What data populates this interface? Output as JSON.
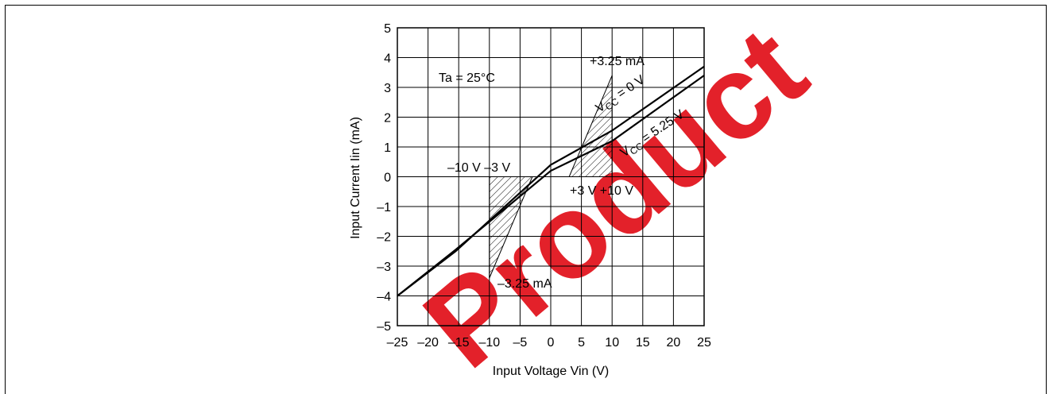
{
  "chart_data": {
    "type": "line",
    "xlabel": "Input Voltage  Vin  (V)",
    "ylabel": "Input Current  Iin  (mA)",
    "xlim": [
      -25,
      25
    ],
    "ylim": [
      -5,
      5
    ],
    "xticks": [
      "–25",
      "–20",
      "–15",
      "–10",
      "–5",
      "0",
      "5",
      "10",
      "15",
      "20",
      "25"
    ],
    "yticks": [
      "5",
      "4",
      "3",
      "2",
      "1",
      "0",
      "–1",
      "–2",
      "–3",
      "–4",
      "–5"
    ],
    "grid": true,
    "series": [
      {
        "name": "VCC = 0 V",
        "x": [
          -25,
          -15.5,
          0,
          10,
          25
        ],
        "y": [
          -4.0,
          -2.5,
          0.4,
          1.55,
          3.7
        ]
      },
      {
        "name": "VCC = 5.25 V",
        "x": [
          -25,
          -15.5,
          0,
          10,
          25
        ],
        "y": [
          -4.0,
          -2.45,
          0.2,
          1.2,
          3.4
        ]
      }
    ],
    "hatched_regions": [
      {
        "vertices": [
          [
            -10,
            -3.4
          ],
          [
            -10,
            0
          ],
          [
            -3,
            0
          ]
        ]
      },
      {
        "vertices": [
          [
            3,
            0
          ],
          [
            10,
            0
          ],
          [
            10,
            3.4
          ]
        ]
      }
    ],
    "annotations": {
      "condition": "Ta = 25°C",
      "upper_limit": "+3.25 mA",
      "lower_limit": "–3.25 mA",
      "neg_voltages": "–10 V –3 V",
      "pos_voltages": "+3 V +10 V",
      "series1_label": {
        "base": "V",
        "sub": "CC",
        "rest": " = 0 V"
      },
      "series2_label": {
        "base": "V",
        "sub": "CC",
        "rest": " = 5.25 V"
      }
    }
  },
  "watermark": {
    "text": "Product",
    "color": "#e10a14"
  }
}
